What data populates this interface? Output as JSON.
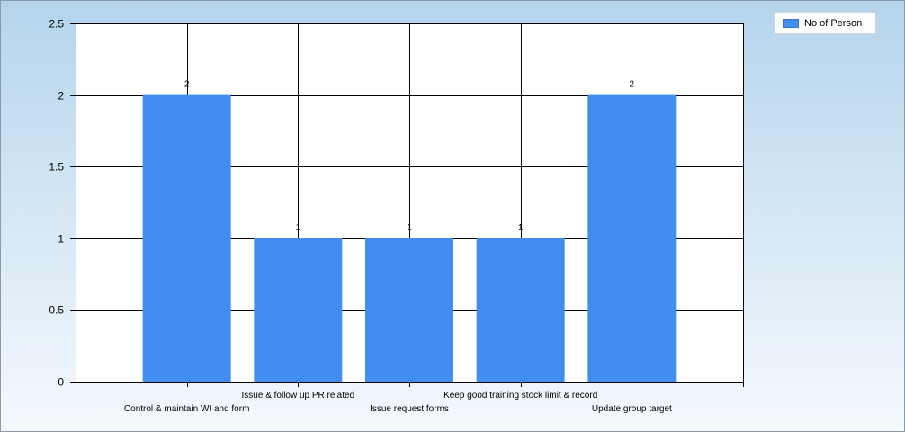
{
  "chart_data": {
    "type": "bar",
    "categories": [
      "Control & maintain WI and form",
      "Issue & follow up PR related",
      "Issue request forms",
      "Keep good training stock limit & record",
      "Update group target"
    ],
    "series": [
      {
        "name": "No of Person",
        "values": [
          2,
          1,
          1,
          1,
          2
        ],
        "color": "#418ef0"
      }
    ],
    "y_ticks": [
      "0",
      "0.5",
      "1",
      "1.5",
      "2",
      "2.5"
    ],
    "ylim": [
      0,
      2.5
    ],
    "grid": true,
    "legend_position": "top-right"
  }
}
